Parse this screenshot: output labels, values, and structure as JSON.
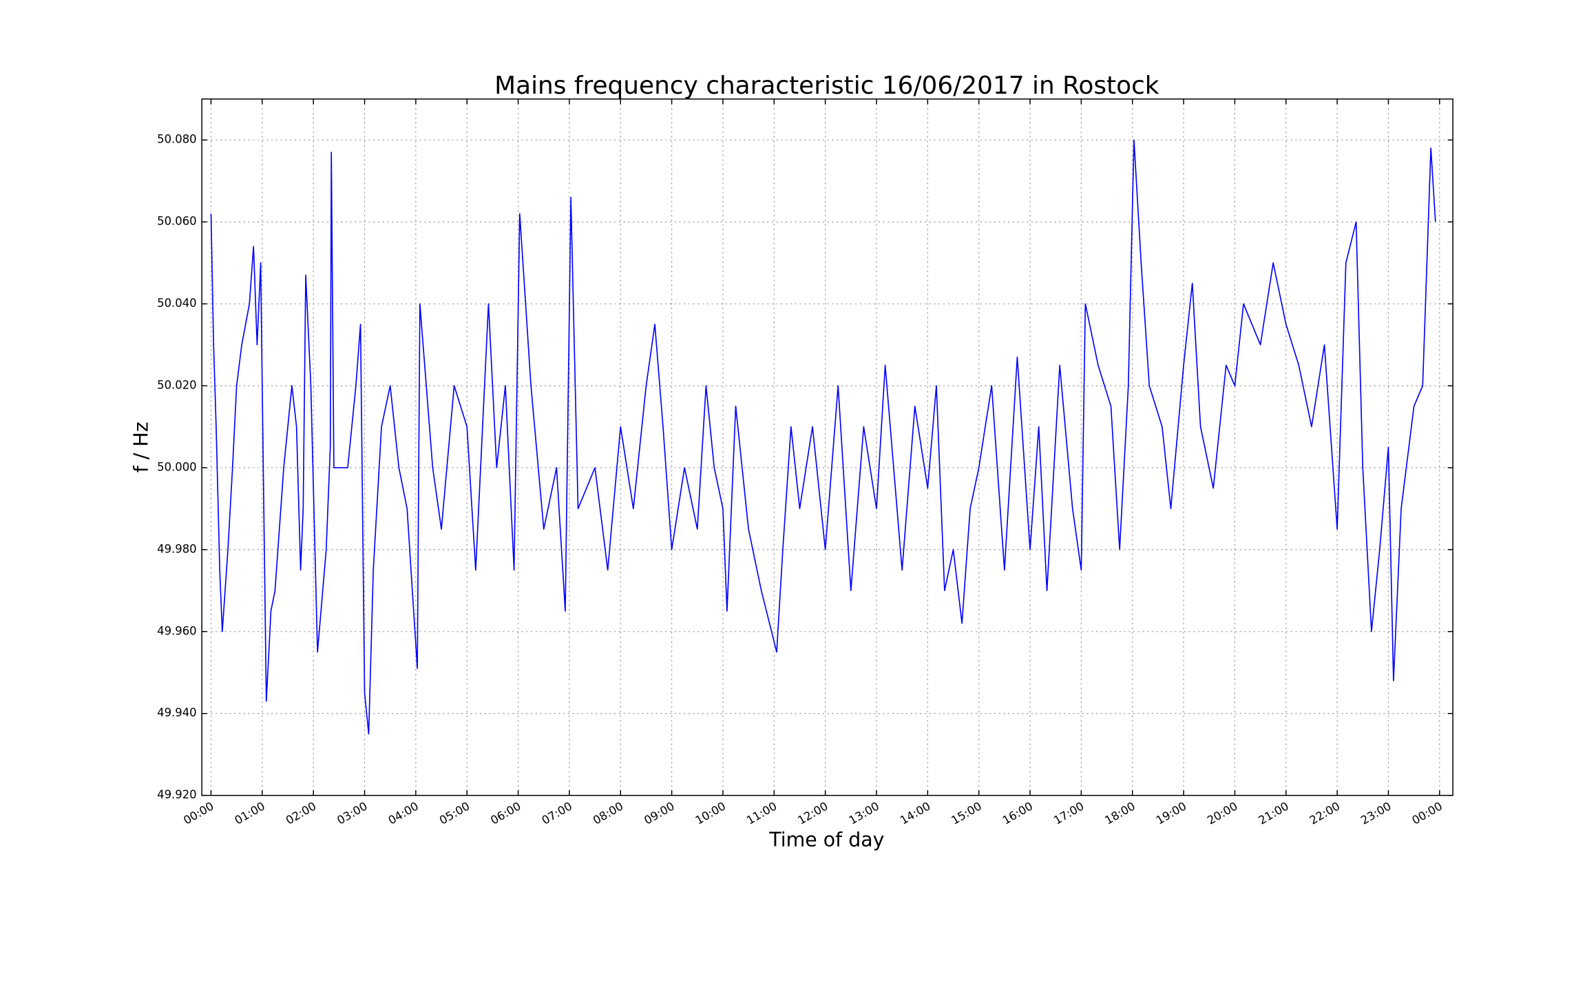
{
  "chart_data": {
    "type": "line",
    "title": "Mains frequency characteristic 16/06/2017 in Rostock",
    "x_label": "Time of day",
    "y_label": "f / Hz",
    "x": [
      0.0,
      0.05,
      0.1,
      0.17,
      0.22,
      0.33,
      0.42,
      0.5,
      0.6,
      0.75,
      0.83,
      0.9,
      0.97,
      1.0,
      1.08,
      1.17,
      1.25,
      1.42,
      1.58,
      1.67,
      1.75,
      1.8,
      1.85,
      1.95,
      2.0,
      2.08,
      2.25,
      2.33,
      2.35,
      2.4,
      2.67,
      2.83,
      2.92,
      3.0,
      3.08,
      3.17,
      3.33,
      3.5,
      3.67,
      3.83,
      4.03,
      4.08,
      4.33,
      4.5,
      4.75,
      5.0,
      5.17,
      5.42,
      5.58,
      5.75,
      5.92,
      6.03,
      6.25,
      6.5,
      6.75,
      6.92,
      7.03,
      7.17,
      7.5,
      7.75,
      8.0,
      8.25,
      8.5,
      8.67,
      8.83,
      9.0,
      9.25,
      9.5,
      9.67,
      9.83,
      10.0,
      10.08,
      10.25,
      10.5,
      10.75,
      11.05,
      11.17,
      11.33,
      11.5,
      11.75,
      12.0,
      12.25,
      12.5,
      12.75,
      13.0,
      13.17,
      13.5,
      13.75,
      14.0,
      14.17,
      14.33,
      14.5,
      14.67,
      14.83,
      15.0,
      15.25,
      15.5,
      15.75,
      16.0,
      16.17,
      16.33,
      16.58,
      16.83,
      17.0,
      17.08,
      17.33,
      17.58,
      17.75,
      17.92,
      18.03,
      18.17,
      18.33,
      18.58,
      18.75,
      19.0,
      19.17,
      19.33,
      19.58,
      19.83,
      20.0,
      20.17,
      20.5,
      20.75,
      21.0,
      21.25,
      21.5,
      21.75,
      22.0,
      22.17,
      22.37,
      22.5,
      22.67,
      22.83,
      23.0,
      23.1,
      23.25,
      23.5,
      23.67,
      23.83,
      23.92
    ],
    "series": [
      {
        "name": "f",
        "color": "#0000ff",
        "values": [
          50.062,
          50.03,
          50.01,
          49.975,
          49.96,
          49.98,
          50.0,
          50.02,
          50.03,
          50.04,
          50.054,
          50.03,
          50.05,
          50.02,
          49.943,
          49.965,
          49.97,
          50.0,
          50.02,
          50.01,
          49.975,
          49.99,
          50.047,
          50.02,
          49.995,
          49.955,
          49.98,
          50.005,
          50.077,
          50.0,
          50.0,
          50.02,
          50.035,
          49.945,
          49.935,
          49.975,
          50.01,
          50.02,
          50.0,
          49.99,
          49.951,
          50.04,
          50.0,
          49.985,
          50.02,
          50.01,
          49.975,
          50.04,
          50.0,
          50.02,
          49.975,
          50.062,
          50.02,
          49.985,
          50.0,
          49.965,
          50.066,
          49.99,
          50.0,
          49.975,
          50.01,
          49.99,
          50.02,
          50.035,
          50.01,
          49.98,
          50.0,
          49.985,
          50.02,
          50.0,
          49.99,
          49.965,
          50.015,
          49.985,
          49.97,
          49.955,
          49.98,
          50.01,
          49.99,
          50.01,
          49.98,
          50.02,
          49.97,
          50.01,
          49.99,
          50.025,
          49.975,
          50.015,
          49.995,
          50.02,
          49.97,
          49.98,
          49.962,
          49.99,
          50.0,
          50.02,
          49.975,
          50.027,
          49.98,
          50.01,
          49.97,
          50.025,
          49.99,
          49.975,
          50.04,
          50.025,
          50.015,
          49.98,
          50.02,
          50.08,
          50.05,
          50.02,
          50.01,
          49.99,
          50.025,
          50.045,
          50.01,
          49.995,
          50.025,
          50.02,
          50.04,
          50.03,
          50.05,
          50.035,
          50.025,
          50.01,
          50.03,
          49.985,
          50.05,
          50.06,
          50.0,
          49.96,
          49.98,
          50.005,
          49.948,
          49.99,
          50.015,
          50.02,
          50.078,
          50.06
        ]
      }
    ],
    "xlim": [
      -0.18,
      24.26
    ],
    "xticks": [
      {
        "value": 0,
        "label": "00:00"
      },
      {
        "value": 1,
        "label": "01:00"
      },
      {
        "value": 2,
        "label": "02:00"
      },
      {
        "value": 3,
        "label": "03:00"
      },
      {
        "value": 4,
        "label": "04:00"
      },
      {
        "value": 5,
        "label": "05:00"
      },
      {
        "value": 6,
        "label": "06:00"
      },
      {
        "value": 7,
        "label": "07:00"
      },
      {
        "value": 8,
        "label": "08:00"
      },
      {
        "value": 9,
        "label": "09:00"
      },
      {
        "value": 10,
        "label": "10:00"
      },
      {
        "value": 11,
        "label": "11:00"
      },
      {
        "value": 12,
        "label": "12:00"
      },
      {
        "value": 13,
        "label": "13:00"
      },
      {
        "value": 14,
        "label": "14:00"
      },
      {
        "value": 15,
        "label": "15:00"
      },
      {
        "value": 16,
        "label": "16:00"
      },
      {
        "value": 17,
        "label": "17:00"
      },
      {
        "value": 18,
        "label": "18:00"
      },
      {
        "value": 19,
        "label": "19:00"
      },
      {
        "value": 20,
        "label": "20:00"
      },
      {
        "value": 21,
        "label": "21:00"
      },
      {
        "value": 22,
        "label": "22:00"
      },
      {
        "value": 23,
        "label": "23:00"
      },
      {
        "value": 24,
        "label": "00:00"
      }
    ],
    "ylim": [
      49.92,
      50.09
    ],
    "yticks": [
      {
        "value": 49.92,
        "label": "49.920"
      },
      {
        "value": 49.94,
        "label": "49.940"
      },
      {
        "value": 49.96,
        "label": "49.960"
      },
      {
        "value": 49.98,
        "label": "49.980"
      },
      {
        "value": 50.0,
        "label": "50.000"
      },
      {
        "value": 50.02,
        "label": "50.020"
      },
      {
        "value": 50.04,
        "label": "50.040"
      },
      {
        "value": 50.06,
        "label": "50.060"
      },
      {
        "value": 50.08,
        "label": "50.080"
      }
    ],
    "grid": true
  }
}
